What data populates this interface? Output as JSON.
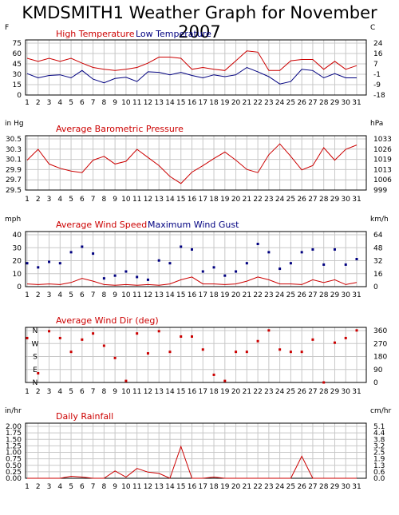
{
  "title": "KMDSMITH1 Weather Graph for November 2007",
  "colors": {
    "red": "#cc0000",
    "blue": "#000080",
    "grid": "#c8c8c8",
    "frame": "#000000"
  },
  "days": [
    "1",
    "2",
    "3",
    "4",
    "5",
    "6",
    "7",
    "8",
    "9",
    "10",
    "11",
    "12",
    "13",
    "14",
    "15",
    "16",
    "17",
    "18",
    "19",
    "20",
    "21",
    "22",
    "23",
    "24",
    "25",
    "26",
    "27",
    "28",
    "29",
    "30",
    "31"
  ],
  "chart_data": [
    {
      "type": "line",
      "id": "temp",
      "left_unit": "F",
      "right_unit": "C",
      "ylim": [
        0,
        90
      ],
      "left_ticks": [
        "75",
        "60",
        "45",
        "30",
        "15",
        "0"
      ],
      "right_ticks": [
        "24",
        "16",
        "7",
        "-1",
        "-9",
        "-18"
      ],
      "series": [
        {
          "name": "High Temperature",
          "color": "#cc0000",
          "values": [
            60,
            55,
            60,
            55,
            60,
            52,
            45,
            42,
            40,
            42,
            45,
            52,
            62,
            62,
            60,
            42,
            45,
            42,
            40,
            56,
            72,
            70,
            40,
            40,
            56,
            58,
            58,
            42,
            55,
            42,
            48
          ]
        },
        {
          "name": "Low Temperature",
          "color": "#000080",
          "values": [
            35,
            28,
            32,
            33,
            28,
            40,
            26,
            20,
            27,
            29,
            22,
            38,
            37,
            33,
            37,
            32,
            28,
            33,
            30,
            33,
            45,
            38,
            30,
            18,
            22,
            42,
            40,
            28,
            35,
            28,
            28
          ]
        }
      ]
    },
    {
      "type": "line",
      "id": "pressure",
      "left_unit": "in Hg",
      "right_unit": "hPa",
      "ylim": [
        29.5,
        30.5
      ],
      "left_ticks": [
        "30.5",
        "30.3",
        "30.1",
        "29.9",
        "29.7",
        "29.5"
      ],
      "right_ticks": [
        "1033",
        "1026",
        "1019",
        "1013",
        "1006",
        "999"
      ],
      "series": [
        {
          "name": "Average Barometric Pressure",
          "color": "#cc0000",
          "values": [
            30.05,
            30.25,
            29.98,
            29.9,
            29.85,
            29.82,
            30.05,
            30.12,
            29.98,
            30.03,
            30.25,
            30.1,
            29.95,
            29.75,
            29.62,
            29.83,
            29.95,
            30.08,
            30.2,
            30.05,
            29.88,
            29.82,
            30.15,
            30.35,
            30.12,
            29.87,
            29.95,
            30.28,
            30.05,
            30.25,
            30.33
          ]
        }
      ]
    },
    {
      "type": "line",
      "id": "wind",
      "left_unit": "mph",
      "right_unit": "km/h",
      "ylim": [
        0,
        40
      ],
      "left_ticks": [
        "40",
        "30",
        "20",
        "10",
        "0"
      ],
      "right_ticks": [
        "64",
        "48",
        "32",
        "16",
        "0"
      ],
      "series": [
        {
          "name": "Average Wind Speed",
          "color": "#cc0000",
          "values": [
            2,
            1.5,
            2,
            1.5,
            3,
            6,
            4,
            1.5,
            1,
            1.5,
            1,
            1.5,
            1,
            2,
            5,
            7,
            2,
            2,
            1.5,
            2,
            4,
            7,
            5,
            2,
            2,
            1.5,
            5,
            3,
            5,
            1.5,
            3
          ]
        },
        {
          "name": "Maximum Wind Gust",
          "color": "#000080",
          "values": [
            17,
            14,
            18,
            17,
            25,
            29,
            24,
            6,
            8,
            11,
            7,
            5,
            19,
            17,
            29,
            27,
            11,
            14,
            8,
            11,
            17,
            31,
            25,
            13,
            17,
            25,
            27,
            16,
            27,
            16,
            20
          ]
        }
      ]
    },
    {
      "type": "scatter",
      "id": "winddir",
      "left_unit": "",
      "right_unit": "",
      "ylim": [
        0,
        360
      ],
      "left_ticks": [
        "N",
        "W",
        "S",
        "E",
        "N"
      ],
      "right_ticks": [
        "360",
        "270",
        "180",
        "90",
        "0"
      ],
      "series": [
        {
          "name": "Average Wind Dir (deg)",
          "color": "#cc0000",
          "values": [
            290,
            60,
            335,
            290,
            200,
            280,
            320,
            240,
            160,
            10,
            320,
            190,
            335,
            200,
            300,
            300,
            215,
            50,
            10,
            200,
            200,
            270,
            340,
            215,
            200,
            200,
            280,
            0,
            260,
            290,
            340
          ]
        }
      ]
    },
    {
      "type": "line",
      "id": "rain",
      "left_unit": "in/hr",
      "right_unit": "cm/hr",
      "ylim": [
        0,
        2.25
      ],
      "left_ticks": [
        "2.00",
        "1.75",
        "1.50",
        "1.25",
        "1.00",
        "0.75",
        "0.50",
        "0.25",
        "0.00"
      ],
      "right_ticks": [
        "5.1",
        "4.4",
        "3.8",
        "3.2",
        "2.5",
        "1.9",
        "1.3",
        "0.6",
        "0.0"
      ],
      "series": [
        {
          "name": "Daily Rainfall",
          "color": "#cc0000",
          "values": [
            0,
            0,
            0,
            0,
            0.08,
            0.05,
            0,
            0,
            0.3,
            0.05,
            0.4,
            0.25,
            0.2,
            0,
            1.3,
            0,
            0,
            0.05,
            0,
            0,
            0,
            0,
            0,
            0,
            0,
            0.9,
            0,
            0,
            0,
            0,
            0
          ]
        }
      ]
    }
  ]
}
